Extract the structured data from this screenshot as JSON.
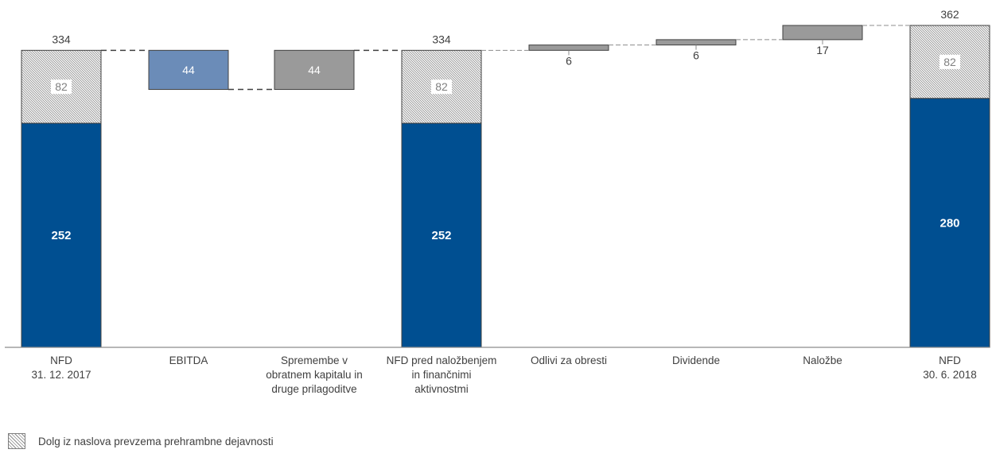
{
  "chart_data": {
    "type": "waterfall",
    "categories": [
      "NFD\n31. 12. 2017",
      "EBITDA",
      "Spremembe v\nobratnem kapitalu in\ndruge prilagoditve",
      "NFD pred naložbenjem\nin finančnimi\naktivnostmi",
      "Odlivi za obresti",
      "Dividende",
      "Naložbe",
      "NFD\n30. 6. 2018"
    ],
    "bars": [
      {
        "kind": "total",
        "segments": [
          {
            "value": 252,
            "style": "solid",
            "color": "#004f91",
            "label": "252"
          },
          {
            "value": 82,
            "style": "hatched",
            "label": "82"
          }
        ],
        "total_label": "334"
      },
      {
        "kind": "decrease",
        "start": 334,
        "end": 290,
        "color": "#6b8cb8",
        "label": "44"
      },
      {
        "kind": "increase",
        "start": 290,
        "end": 334,
        "color": "#9a9a9a",
        "label": "44"
      },
      {
        "kind": "total",
        "segments": [
          {
            "value": 252,
            "style": "solid",
            "color": "#004f91",
            "label": "252"
          },
          {
            "value": 82,
            "style": "hatched",
            "label": "82"
          }
        ],
        "total_label": "334"
      },
      {
        "kind": "increase",
        "start": 334,
        "end": 340,
        "color": "#9a9a9a",
        "label": "6"
      },
      {
        "kind": "increase",
        "start": 340,
        "end": 346,
        "color": "#9a9a9a",
        "label": "6"
      },
      {
        "kind": "increase",
        "start": 346,
        "end": 362,
        "color": "#9a9a9a",
        "label": "17"
      },
      {
        "kind": "total",
        "segments": [
          {
            "value": 280,
            "style": "solid",
            "color": "#004f91",
            "label": "280"
          },
          {
            "value": 82,
            "style": "hatched",
            "label": "82"
          }
        ],
        "total_label": "362"
      }
    ],
    "ylim": [
      0,
      362
    ],
    "grid": false,
    "legend": {
      "position": "bottom-left",
      "entries": [
        {
          "label": "Dolg iz naslova prevzema prehrambne dejavnosti",
          "style": "hatched"
        }
      ]
    }
  }
}
